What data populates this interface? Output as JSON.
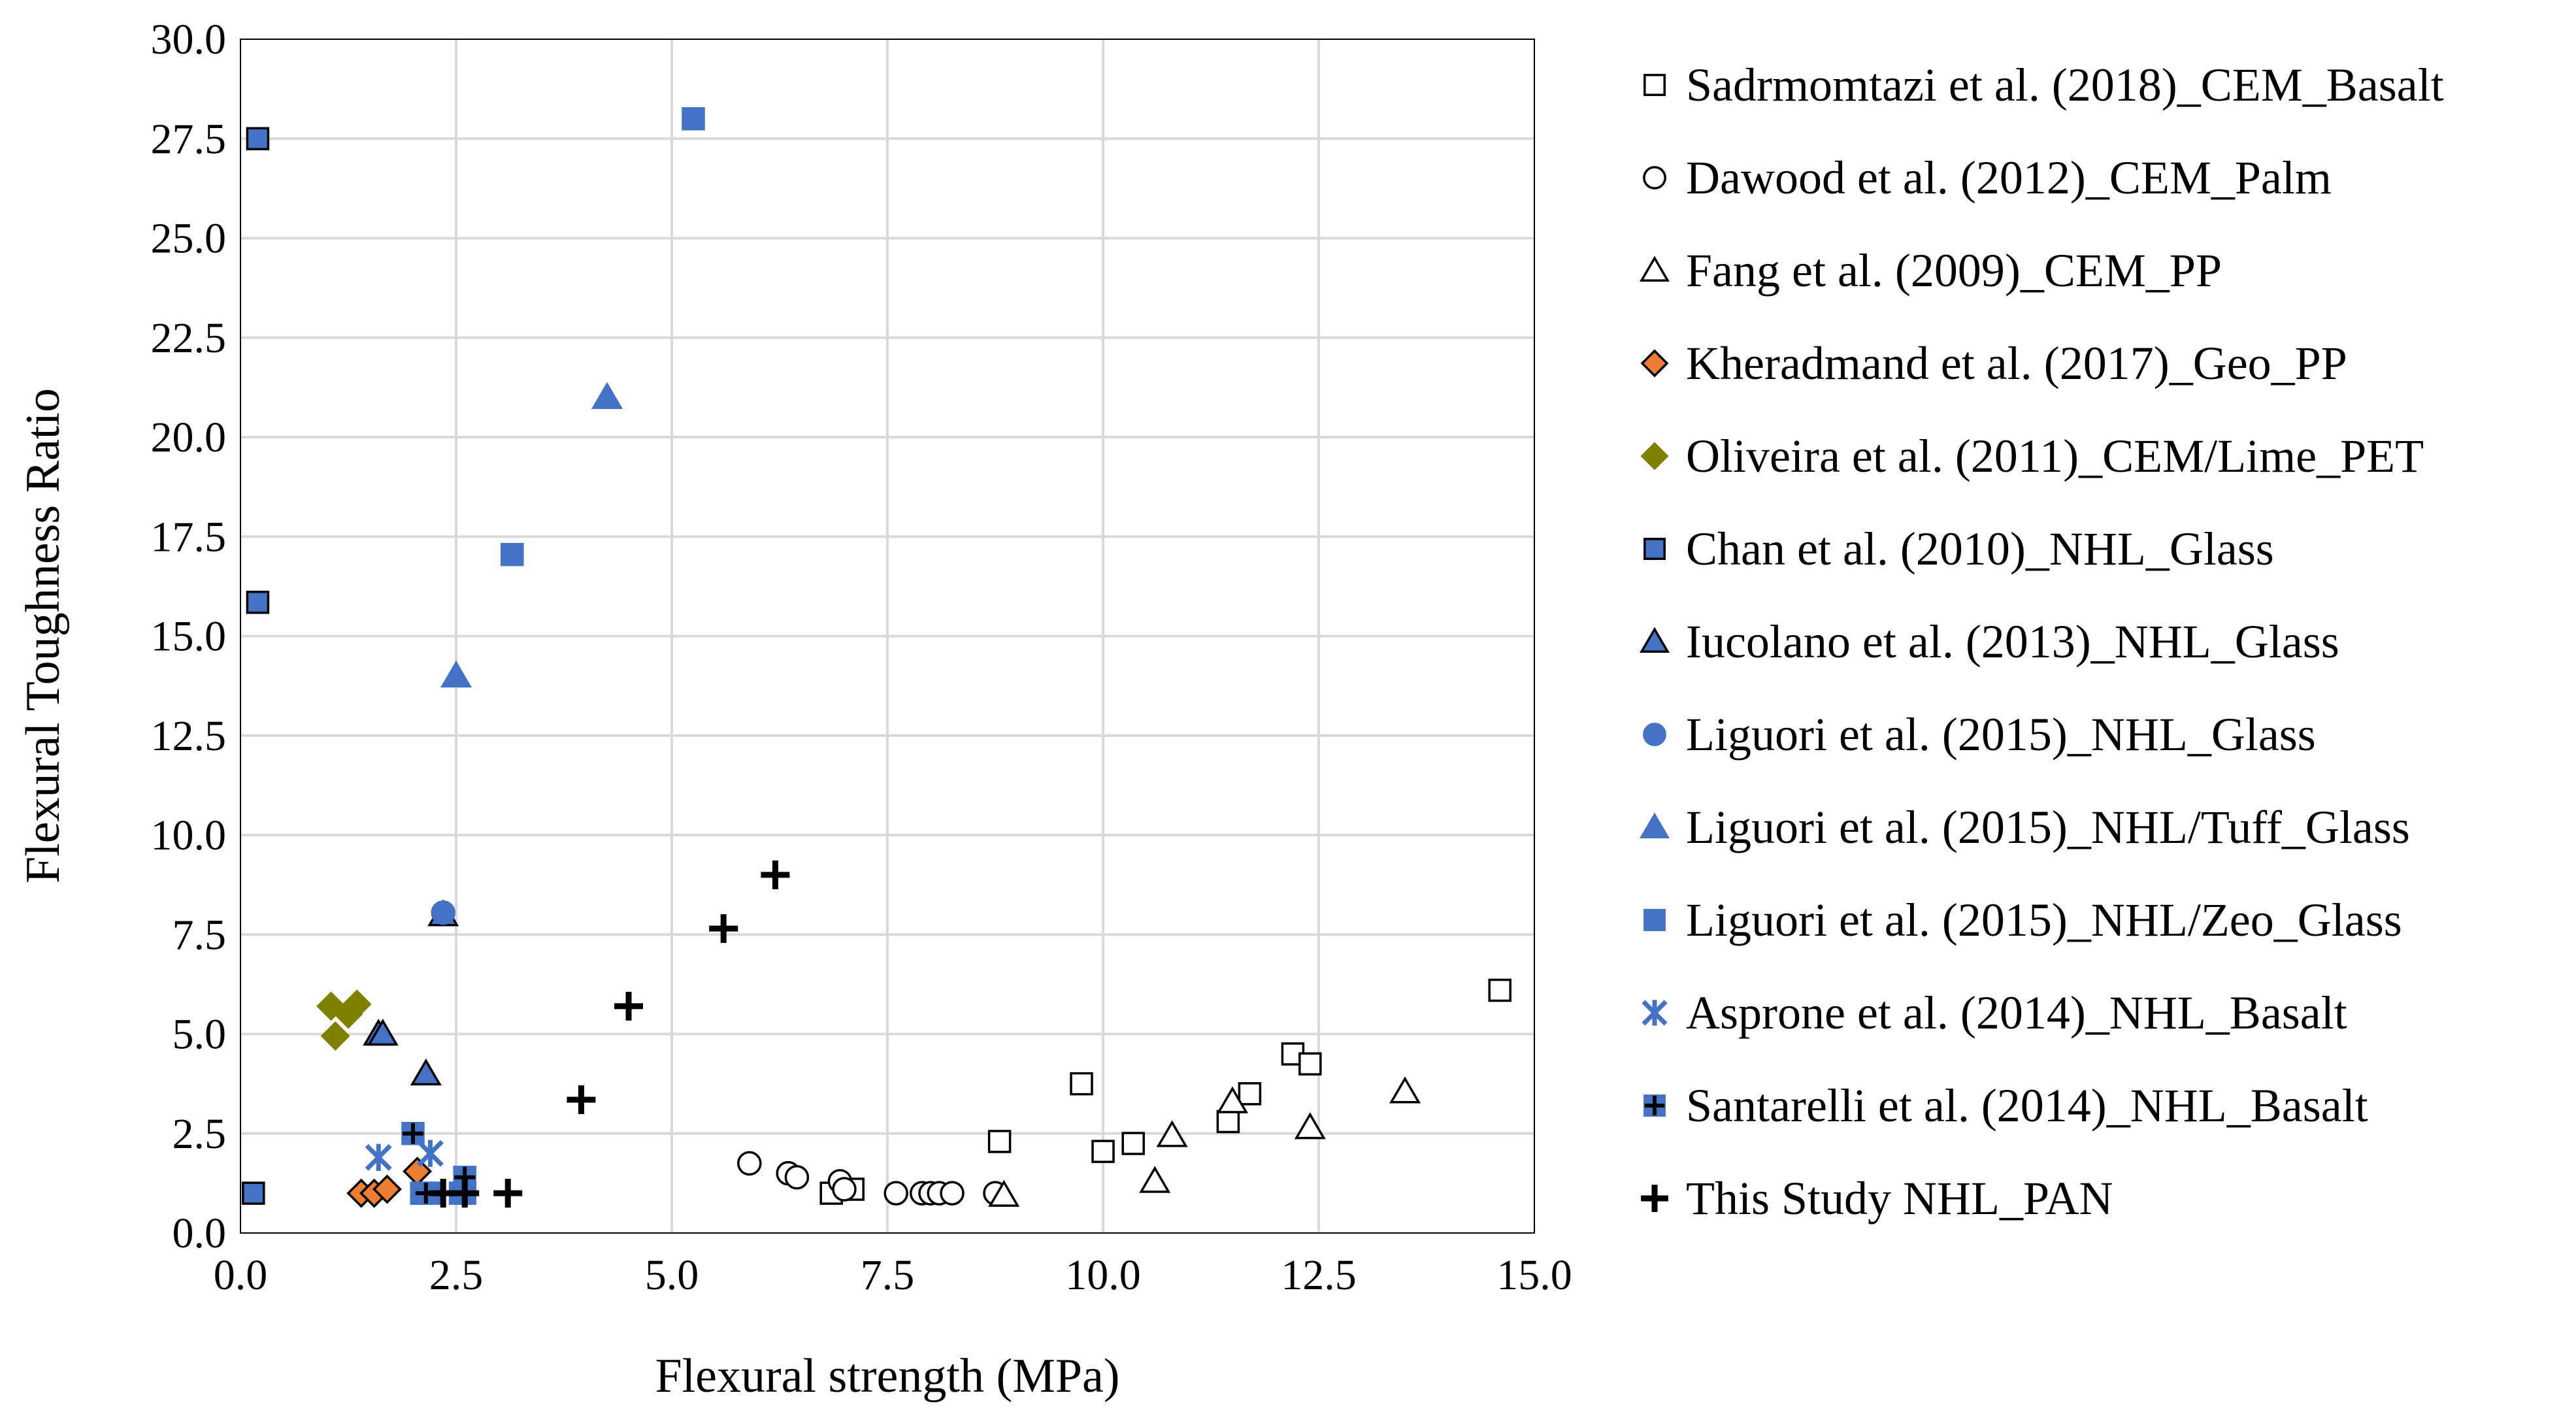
{
  "chart_data": {
    "type": "scatter",
    "title": "",
    "xlabel": "Flexural strength (MPa)",
    "ylabel": "Flexural Toughness Ratio",
    "xlim": [
      0,
      15
    ],
    "ylim": [
      0,
      30
    ],
    "x_ticks": [
      "0.0",
      "2.5",
      "5.0",
      "7.5",
      "10.0",
      "12.5",
      "15.0"
    ],
    "y_ticks": [
      "0.0",
      "2.5",
      "5.0",
      "7.5",
      "10.0",
      "12.5",
      "15.0",
      "17.5",
      "20.0",
      "22.5",
      "25.0",
      "27.5",
      "30.0"
    ],
    "grid": true,
    "legend_position": "right",
    "series": [
      {
        "name": "Sadrmomtazi et al. (2018)_CEM_Basalt",
        "marker": "square-open",
        "color": "#ffffff",
        "stroke": "#000000",
        "points": [
          [
            6.85,
            1.0
          ],
          [
            7.1,
            1.1
          ],
          [
            8.8,
            2.3
          ],
          [
            9.75,
            3.75
          ],
          [
            10.0,
            2.05
          ],
          [
            10.35,
            2.25
          ],
          [
            11.45,
            2.8
          ],
          [
            11.7,
            3.5
          ],
          [
            12.2,
            4.5
          ],
          [
            12.4,
            4.25
          ],
          [
            14.6,
            6.1
          ]
        ]
      },
      {
        "name": "Dawood et al. (2012)_CEM_Palm",
        "marker": "circle-open",
        "color": "#ffffff",
        "stroke": "#000000",
        "points": [
          [
            5.9,
            1.75
          ],
          [
            6.35,
            1.5
          ],
          [
            6.45,
            1.4
          ],
          [
            6.95,
            1.3
          ],
          [
            7.0,
            1.1
          ],
          [
            7.6,
            1.0
          ],
          [
            7.9,
            1.0
          ],
          [
            8.0,
            1.0
          ],
          [
            8.1,
            1.0
          ],
          [
            8.25,
            1.0
          ],
          [
            8.75,
            1.0
          ]
        ]
      },
      {
        "name": "Fang et al. (2009)_CEM_PP",
        "marker": "triangle-open",
        "color": "#ffffff",
        "stroke": "#000000",
        "points": [
          [
            8.85,
            0.95
          ],
          [
            10.6,
            1.3
          ],
          [
            10.8,
            2.45
          ],
          [
            11.5,
            3.3
          ],
          [
            12.4,
            2.65
          ],
          [
            13.5,
            3.55
          ]
        ]
      },
      {
        "name": "Kheradmand et al. (2017)_Geo_PP",
        "marker": "diamond",
        "color": "#ed7d31",
        "stroke": "#000000",
        "points": [
          [
            1.4,
            1.0
          ],
          [
            1.55,
            1.0
          ],
          [
            1.7,
            1.1
          ],
          [
            2.05,
            1.55
          ]
        ]
      },
      {
        "name": "Oliveira et al. (2011)_CEM/Lime_PET",
        "marker": "diamond",
        "color": "#7f7f00",
        "stroke": "#7f7f00",
        "points": [
          [
            1.05,
            5.7
          ],
          [
            1.1,
            4.95
          ],
          [
            1.25,
            5.5
          ],
          [
            1.35,
            5.75
          ]
        ]
      },
      {
        "name": "Chan et al. (2010)_NHL_Glass",
        "marker": "square",
        "color": "#4472c4",
        "stroke": "#000000",
        "points": [
          [
            0.2,
            27.5
          ],
          [
            0.2,
            15.85
          ],
          [
            0.15,
            1.0
          ]
        ]
      },
      {
        "name": "Iucolano et al. (2013)_NHL_Glass",
        "marker": "triangle",
        "color": "#4472c4",
        "stroke": "#000000",
        "points": [
          [
            1.6,
            5.0
          ],
          [
            1.65,
            5.0
          ],
          [
            2.15,
            4.0
          ],
          [
            2.35,
            8.0
          ]
        ]
      },
      {
        "name": "Liguori et al. (2015)_NHL_Glass",
        "marker": "circle",
        "color": "#4472c4",
        "stroke": "#4472c4",
        "points": [
          [
            2.35,
            8.05
          ]
        ]
      },
      {
        "name": "Liguori et al. (2015)_NHL/Tuff_Glass",
        "marker": "triangle",
        "color": "#4472c4",
        "stroke": "#4472c4",
        "points": [
          [
            4.25,
            21.0
          ],
          [
            2.5,
            14.0
          ]
        ]
      },
      {
        "name": "Liguori et al. (2015)_NHL/Zeo_Glass",
        "marker": "square",
        "color": "#4472c4",
        "stroke": "#4472c4",
        "points": [
          [
            5.25,
            28.0
          ],
          [
            3.15,
            17.05
          ],
          [
            2.1,
            1.0
          ],
          [
            2.2,
            1.0
          ],
          [
            2.55,
            1.0
          ],
          [
            2.6,
            1.0
          ]
        ]
      },
      {
        "name": "Asprone et al. (2014)_NHL_Basalt",
        "marker": "asterisk",
        "color": "#4472c4",
        "stroke": "#4472c4",
        "points": [
          [
            1.6,
            1.9
          ],
          [
            2.2,
            2.0
          ]
        ]
      },
      {
        "name": "Santarelli et al. (2014)_NHL_Basalt",
        "marker": "square-plus",
        "color": "#4472c4",
        "stroke": "#000000",
        "points": [
          [
            2.0,
            2.5
          ],
          [
            2.6,
            1.4
          ],
          [
            2.15,
            1.0
          ]
        ]
      },
      {
        "name": "This Study NHL_PAN",
        "marker": "plus",
        "color": "#000000",
        "stroke": "#000000",
        "points": [
          [
            2.35,
            1.0
          ],
          [
            2.6,
            1.0
          ],
          [
            3.1,
            1.0
          ],
          [
            3.95,
            3.35
          ],
          [
            4.5,
            5.7
          ],
          [
            5.6,
            7.65
          ],
          [
            6.2,
            9.0
          ]
        ]
      }
    ]
  }
}
